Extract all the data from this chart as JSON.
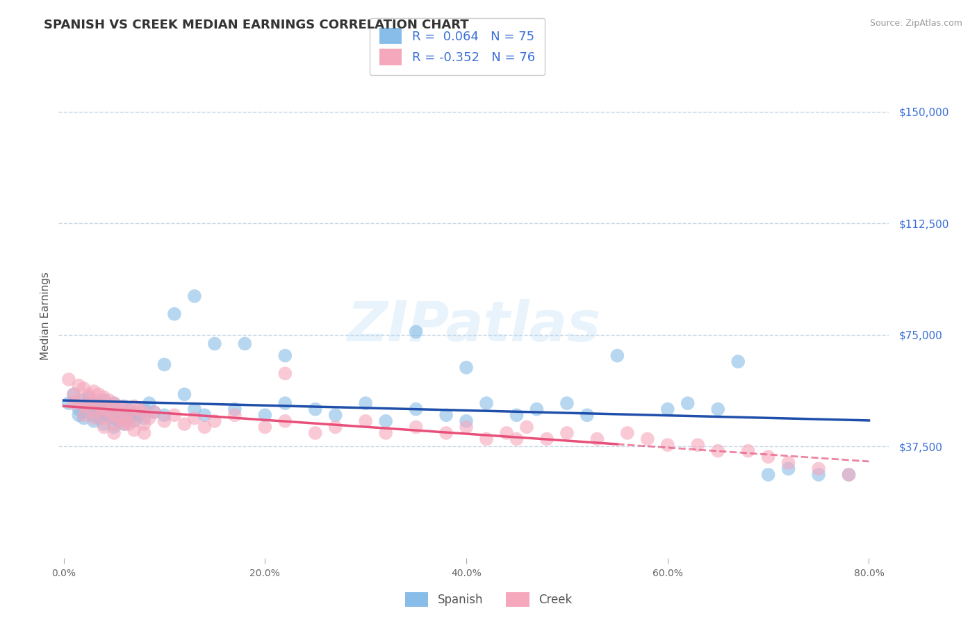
{
  "title": "SPANISH VS CREEK MEDIAN EARNINGS CORRELATION CHART",
  "source_text": "Source: ZipAtlas.com",
  "ylabel": "Median Earnings",
  "xlim": [
    -0.005,
    0.82
  ],
  "ylim": [
    0,
    162500
  ],
  "xtick_labels": [
    "0.0%",
    "20.0%",
    "40.0%",
    "60.0%",
    "80.0%"
  ],
  "xtick_vals": [
    0.0,
    0.2,
    0.4,
    0.6,
    0.8
  ],
  "ytick_vals": [
    37500,
    75000,
    112500,
    150000
  ],
  "ytick_labels": [
    "$37,500",
    "$75,000",
    "$112,500",
    "$150,000"
  ],
  "spanish_R": 0.064,
  "spanish_N": 75,
  "creek_R": -0.352,
  "creek_N": 76,
  "spanish_color": "#87bde8",
  "creek_color": "#f5a8bc",
  "spanish_line_color": "#1f4faa",
  "creek_line_color": "#e8507a",
  "background_color": "#ffffff",
  "grid_color": "#c8d8e8",
  "title_fontsize": 13,
  "axis_label_fontsize": 11,
  "tick_fontsize": 10,
  "watermark_text": "ZIPatlas",
  "legend_R_color": "#3a6fd8",
  "spanish_x": [
    0.005,
    0.01,
    0.015,
    0.015,
    0.02,
    0.02,
    0.02,
    0.025,
    0.025,
    0.03,
    0.03,
    0.03,
    0.035,
    0.035,
    0.035,
    0.04,
    0.04,
    0.04,
    0.04,
    0.045,
    0.045,
    0.05,
    0.05,
    0.05,
    0.05,
    0.055,
    0.055,
    0.06,
    0.06,
    0.06,
    0.065,
    0.065,
    0.07,
    0.07,
    0.075,
    0.08,
    0.08,
    0.085,
    0.09,
    0.1,
    0.1,
    0.11,
    0.12,
    0.13,
    0.14,
    0.15,
    0.17,
    0.2,
    0.22,
    0.25,
    0.27,
    0.3,
    0.32,
    0.35,
    0.38,
    0.4,
    0.42,
    0.45,
    0.47,
    0.5,
    0.52,
    0.55,
    0.6,
    0.62,
    0.65,
    0.7,
    0.72,
    0.75,
    0.78,
    0.35,
    0.13,
    0.18,
    0.22,
    0.4,
    0.67
  ],
  "spanish_y": [
    52000,
    55000,
    50000,
    48000,
    53000,
    49000,
    47000,
    54000,
    51000,
    50000,
    48000,
    46000,
    52000,
    49000,
    47000,
    53000,
    50000,
    48000,
    45000,
    51000,
    48000,
    50000,
    47000,
    52000,
    44000,
    49000,
    46000,
    51000,
    48000,
    45000,
    50000,
    47000,
    49000,
    46000,
    48000,
    50000,
    47000,
    52000,
    49000,
    65000,
    48000,
    82000,
    55000,
    50000,
    48000,
    72000,
    50000,
    48000,
    52000,
    50000,
    48000,
    52000,
    46000,
    50000,
    48000,
    46000,
    52000,
    48000,
    50000,
    52000,
    48000,
    68000,
    50000,
    52000,
    50000,
    28000,
    30000,
    28000,
    28000,
    76000,
    88000,
    72000,
    68000,
    64000,
    66000
  ],
  "creek_x": [
    0.005,
    0.01,
    0.01,
    0.015,
    0.015,
    0.02,
    0.02,
    0.02,
    0.025,
    0.025,
    0.03,
    0.03,
    0.03,
    0.035,
    0.035,
    0.04,
    0.04,
    0.04,
    0.045,
    0.045,
    0.05,
    0.05,
    0.05,
    0.055,
    0.055,
    0.06,
    0.06,
    0.065,
    0.065,
    0.07,
    0.07,
    0.075,
    0.08,
    0.08,
    0.085,
    0.09,
    0.1,
    0.11,
    0.12,
    0.13,
    0.14,
    0.15,
    0.17,
    0.2,
    0.22,
    0.25,
    0.27,
    0.3,
    0.32,
    0.35,
    0.38,
    0.4,
    0.42,
    0.44,
    0.46,
    0.48,
    0.5,
    0.53,
    0.56,
    0.58,
    0.6,
    0.63,
    0.65,
    0.68,
    0.7,
    0.72,
    0.75,
    0.78,
    0.03,
    0.04,
    0.05,
    0.06,
    0.07,
    0.08,
    0.22,
    0.45
  ],
  "creek_y": [
    60000,
    55000,
    52000,
    58000,
    53000,
    57000,
    51000,
    48000,
    55000,
    52000,
    56000,
    53000,
    49000,
    55000,
    51000,
    54000,
    50000,
    47000,
    53000,
    49000,
    52000,
    48000,
    45000,
    51000,
    47000,
    50000,
    46000,
    49000,
    45000,
    51000,
    47000,
    50000,
    49000,
    45000,
    47000,
    49000,
    46000,
    48000,
    45000,
    47000,
    44000,
    46000,
    48000,
    44000,
    46000,
    42000,
    44000,
    46000,
    42000,
    44000,
    42000,
    44000,
    40000,
    42000,
    44000,
    40000,
    42000,
    40000,
    42000,
    40000,
    38000,
    38000,
    36000,
    36000,
    34000,
    32000,
    30000,
    28000,
    47000,
    44000,
    42000,
    45000,
    43000,
    42000,
    62000,
    40000
  ]
}
